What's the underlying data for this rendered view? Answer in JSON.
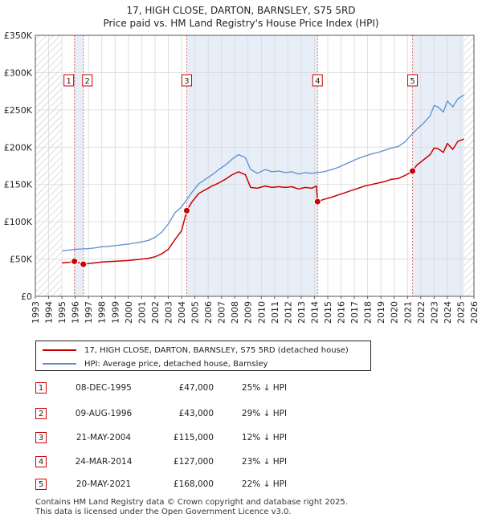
{
  "title": {
    "line1": "17, HIGH CLOSE, DARTON, BARNSLEY, S75 5RD",
    "line2": "Price paid vs. HM Land Registry's House Price Index (HPI)"
  },
  "legend": {
    "property_label": "17, HIGH CLOSE, DARTON, BARNSLEY, S75 5RD (detached house)",
    "hpi_label": "HPI: Average price, detached house, Barnsley"
  },
  "sales": [
    {
      "num": "1",
      "date": "08-DEC-1995",
      "price": "£47,000",
      "hpi": "25% ↓ HPI"
    },
    {
      "num": "2",
      "date": "09-AUG-1996",
      "price": "£43,000",
      "hpi": "29% ↓ HPI"
    },
    {
      "num": "3",
      "date": "21-MAY-2004",
      "price": "£115,000",
      "hpi": "12% ↓ HPI"
    },
    {
      "num": "4",
      "date": "24-MAR-2014",
      "price": "£127,000",
      "hpi": "23% ↓ HPI"
    },
    {
      "num": "5",
      "date": "20-MAY-2021",
      "price": "£168,000",
      "hpi": "22% ↓ HPI"
    }
  ],
  "footer": {
    "line1": "Contains HM Land Registry data © Crown copyright and database right 2025.",
    "line2": "This data is licensed under the Open Government Licence v3.0."
  },
  "colors": {
    "property": "#cc0000",
    "hpi": "#5a8fcf",
    "ownership_shade": "#e8eef8",
    "grid": "#d8d8d8"
  },
  "chart_data": {
    "type": "line",
    "xlim": [
      1993,
      2026
    ],
    "ylim": [
      0,
      350000
    ],
    "x_ticks": [
      1993,
      1994,
      1995,
      1996,
      1997,
      1998,
      1999,
      2000,
      2001,
      2002,
      2003,
      2004,
      2005,
      2006,
      2007,
      2008,
      2009,
      2010,
      2011,
      2012,
      2013,
      2014,
      2015,
      2016,
      2017,
      2018,
      2019,
      2020,
      2021,
      2022,
      2023,
      2024,
      2025,
      2026
    ],
    "y_ticks": [
      {
        "value": 0,
        "label": "£0"
      },
      {
        "value": 50000,
        "label": "£50K"
      },
      {
        "value": 100000,
        "label": "£100K"
      },
      {
        "value": 150000,
        "label": "£150K"
      },
      {
        "value": 200000,
        "label": "£200K"
      },
      {
        "value": 250000,
        "label": "£250K"
      },
      {
        "value": 300000,
        "label": "£300K"
      },
      {
        "value": 350000,
        "label": "£350K"
      }
    ],
    "data_start": 1995.0,
    "data_end": 2025.25,
    "ownership_periods": [
      [
        1995.94,
        1996.61
      ],
      [
        2004.39,
        2014.23
      ],
      [
        2021.38,
        2025.25
      ]
    ],
    "sales": [
      {
        "label": "1",
        "x": 1995.94,
        "y": 47000
      },
      {
        "label": "2",
        "x": 1996.61,
        "y": 43000
      },
      {
        "label": "3",
        "x": 2004.39,
        "y": 115000
      },
      {
        "label": "4",
        "x": 2014.23,
        "y": 127000
      },
      {
        "label": "5",
        "x": 2021.38,
        "y": 168000
      }
    ],
    "series": [
      {
        "name": "HPI: Average price, detached house, Barnsley",
        "x": [
          1995.0,
          1995.5,
          1996.0,
          1996.5,
          1997.0,
          1997.5,
          1998.0,
          1998.5,
          1999.0,
          1999.5,
          2000.0,
          2000.5,
          2001.0,
          2001.5,
          2002.0,
          2002.5,
          2003.0,
          2003.5,
          2004.0,
          2004.4,
          2004.8,
          2005.3,
          2005.8,
          2006.3,
          2006.8,
          2007.3,
          2007.8,
          2008.3,
          2008.8,
          2009.2,
          2009.7,
          2010.3,
          2010.8,
          2011.3,
          2011.8,
          2012.3,
          2012.8,
          2013.3,
          2013.8,
          2014.2,
          2014.7,
          2015.3,
          2015.8,
          2016.3,
          2016.8,
          2017.3,
          2017.8,
          2018.3,
          2018.8,
          2019.3,
          2019.8,
          2020.3,
          2020.8,
          2021.2,
          2021.7,
          2022.2,
          2022.7,
          2023.0,
          2023.3,
          2023.7,
          2024.0,
          2024.4,
          2024.8,
          2025.25
        ],
        "values": [
          61000,
          62000,
          63000,
          63500,
          64000,
          65000,
          66500,
          67000,
          68000,
          69000,
          70000,
          71500,
          73000,
          75000,
          79000,
          86000,
          97000,
          112000,
          120000,
          130000,
          140000,
          151000,
          157000,
          163000,
          170000,
          176000,
          184000,
          190000,
          186000,
          170000,
          165000,
          170000,
          167000,
          168000,
          166000,
          167000,
          164000,
          166000,
          165000,
          166000,
          167000,
          170000,
          173000,
          177000,
          181000,
          185000,
          188000,
          191000,
          193000,
          196000,
          199000,
          201000,
          207000,
          215000,
          224000,
          232000,
          242000,
          256000,
          254000,
          247000,
          262000,
          254000,
          265000,
          270000
        ]
      },
      {
        "name": "17, HIGH CLOSE, DARTON, BARNSLEY, S75 5RD (detached house)",
        "x": [
          1995.0,
          1995.5,
          1995.94,
          1996.3,
          1996.61,
          1997.0,
          1997.5,
          1998.0,
          1998.5,
          1999.0,
          1999.5,
          2000.0,
          2000.5,
          2001.0,
          2001.5,
          2002.0,
          2002.5,
          2003.0,
          2003.5,
          2004.0,
          2004.39,
          2004.8,
          2005.3,
          2005.8,
          2006.3,
          2006.8,
          2007.3,
          2007.8,
          2008.3,
          2008.8,
          2009.2,
          2009.7,
          2010.3,
          2010.8,
          2011.3,
          2011.8,
          2012.3,
          2012.8,
          2013.3,
          2013.8,
          2014.15,
          2014.23,
          2014.7,
          2015.3,
          2015.8,
          2016.3,
          2016.8,
          2017.3,
          2017.8,
          2018.3,
          2018.8,
          2019.3,
          2019.8,
          2020.3,
          2020.8,
          2021.2,
          2021.38,
          2021.7,
          2022.2,
          2022.7,
          2023.0,
          2023.3,
          2023.7,
          2024.0,
          2024.4,
          2024.8,
          2025.25
        ],
        "values": [
          45000,
          45500,
          47000,
          45000,
          43000,
          44000,
          45000,
          46000,
          46500,
          47000,
          47500,
          48000,
          49000,
          50000,
          51000,
          53000,
          57000,
          63000,
          76000,
          88000,
          115000,
          127000,
          138000,
          143000,
          148000,
          152000,
          157000,
          163000,
          167000,
          163000,
          146000,
          145000,
          148000,
          146000,
          147000,
          146000,
          147000,
          144000,
          146000,
          145000,
          148000,
          127000,
          130000,
          133000,
          136000,
          139000,
          142000,
          145000,
          148000,
          150000,
          152000,
          154000,
          157000,
          158000,
          162000,
          166000,
          168000,
          176000,
          183000,
          190000,
          199000,
          198000,
          193000,
          205000,
          197000,
          208000,
          211000
        ]
      }
    ]
  }
}
